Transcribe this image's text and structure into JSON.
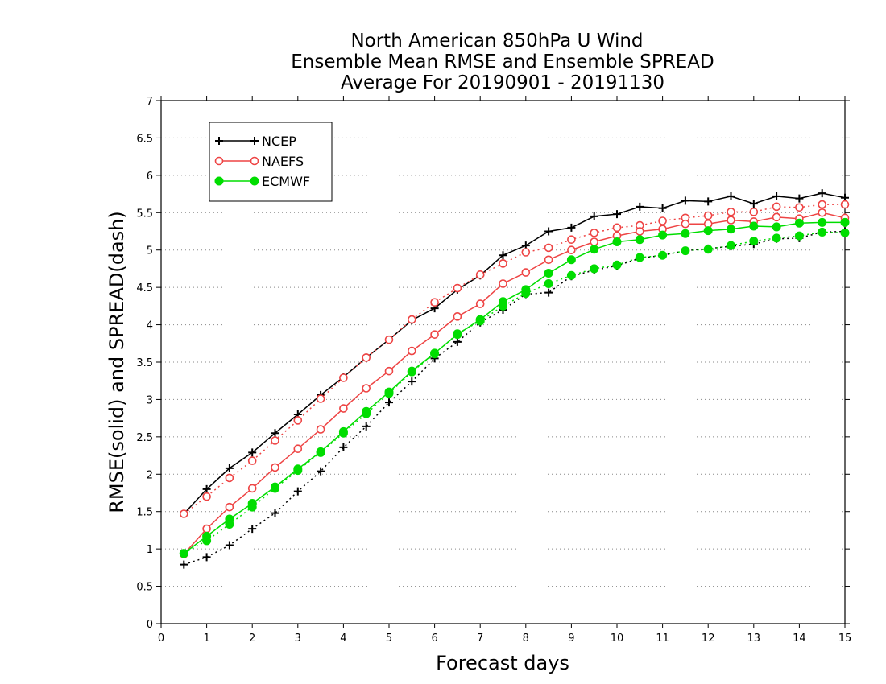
{
  "chart_data": {
    "type": "line",
    "title": [
      "North American 850hPa U Wind",
      "Ensemble Mean RMSE and Ensemble SPREAD",
      "Average For 20190901 - 20191130"
    ],
    "xlabel": "Forecast days",
    "ylabel": "RMSE(solid) and SPREAD(dash)",
    "xlim": [
      0,
      15
    ],
    "ylim": [
      0,
      7
    ],
    "xticks": [
      "0",
      "1",
      "2",
      "3",
      "4",
      "5",
      "6",
      "7",
      "8",
      "9",
      "10",
      "11",
      "12",
      "13",
      "14",
      "15"
    ],
    "yticks": [
      "0",
      "0.5",
      "1",
      "1.5",
      "2",
      "2.5",
      "3",
      "3.5",
      "4",
      "4.5",
      "5",
      "5.5",
      "6",
      "6.5",
      "7"
    ],
    "grid": "dotted-horizontal",
    "legend_position": "top-left",
    "x": [
      0.5,
      1,
      1.5,
      2,
      2.5,
      3,
      3.5,
      4,
      4.5,
      5,
      5.5,
      6,
      6.5,
      7,
      7.5,
      8,
      8.5,
      9,
      9.5,
      10,
      10.5,
      11,
      11.5,
      12,
      12.5,
      13,
      13.5,
      14,
      14.5,
      15
    ],
    "series": [
      {
        "name": "NCEP",
        "color": "#000000",
        "marker": "plus",
        "rmse": [
          1.47,
          1.8,
          2.08,
          2.29,
          2.55,
          2.8,
          3.06,
          3.3,
          3.56,
          3.8,
          4.06,
          4.22,
          4.47,
          4.66,
          4.93,
          5.06,
          5.25,
          5.3,
          5.45,
          5.48,
          5.58,
          5.56,
          5.66,
          5.65,
          5.72,
          5.62,
          5.72,
          5.69,
          5.76,
          5.7
        ],
        "spread": [
          0.79,
          0.89,
          1.05,
          1.27,
          1.48,
          1.77,
          2.04,
          2.36,
          2.64,
          2.96,
          3.24,
          3.55,
          3.77,
          4.03,
          4.2,
          4.41,
          4.43,
          4.65,
          4.73,
          4.79,
          4.89,
          4.93,
          4.99,
          5.02,
          5.05,
          5.08,
          5.15,
          5.16,
          5.24,
          5.25
        ]
      },
      {
        "name": "NAEFS",
        "color": "#ee4444",
        "marker": "circle-open",
        "rmse": [
          0.93,
          1.27,
          1.56,
          1.81,
          2.09,
          2.34,
          2.6,
          2.88,
          3.15,
          3.38,
          3.65,
          3.87,
          4.11,
          4.28,
          4.55,
          4.7,
          4.87,
          5.0,
          5.11,
          5.19,
          5.25,
          5.28,
          5.35,
          5.35,
          5.4,
          5.38,
          5.44,
          5.42,
          5.5,
          5.43
        ],
        "spread": [
          1.47,
          1.7,
          1.95,
          2.18,
          2.45,
          2.72,
          3.01,
          3.29,
          3.56,
          3.8,
          4.07,
          4.3,
          4.49,
          4.67,
          4.82,
          4.97,
          5.03,
          5.14,
          5.23,
          5.3,
          5.33,
          5.39,
          5.43,
          5.46,
          5.51,
          5.51,
          5.58,
          5.57,
          5.61,
          5.61
        ]
      },
      {
        "name": "ECMWF",
        "color": "#00dd00",
        "marker": "circle-filled",
        "rmse": [
          0.94,
          1.17,
          1.4,
          1.61,
          1.83,
          2.07,
          2.3,
          2.57,
          2.84,
          3.1,
          3.38,
          3.62,
          3.87,
          4.07,
          4.31,
          4.47,
          4.69,
          4.87,
          5.01,
          5.11,
          5.14,
          5.2,
          5.22,
          5.26,
          5.28,
          5.32,
          5.31,
          5.36,
          5.37,
          5.37
        ],
        "spread": [
          0.94,
          1.11,
          1.33,
          1.56,
          1.81,
          2.05,
          2.29,
          2.55,
          2.81,
          3.08,
          3.37,
          3.61,
          3.88,
          4.05,
          4.25,
          4.42,
          4.55,
          4.66,
          4.75,
          4.8,
          4.9,
          4.93,
          4.99,
          5.01,
          5.06,
          5.12,
          5.16,
          5.19,
          5.24,
          5.23
        ]
      }
    ]
  }
}
